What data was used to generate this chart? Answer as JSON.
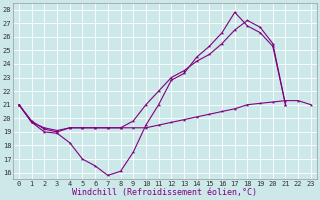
{
  "xlabel": "Windchill (Refroidissement éolien,°C)",
  "ylabel": "",
  "bg_color": "#cce8e8",
  "line_color": "#800080",
  "grid_color": "#ffffff",
  "hours": [
    0,
    1,
    2,
    3,
    4,
    5,
    6,
    7,
    8,
    9,
    10,
    11,
    12,
    13,
    14,
    15,
    16,
    17,
    18,
    19,
    20,
    21,
    22,
    23
  ],
  "temp": [
    21,
    19.8,
    19.2,
    19.0,
    19.3,
    19.3,
    19.3,
    19.3,
    19.3,
    19.3,
    19.3,
    19.5,
    19.7,
    19.9,
    20.1,
    20.3,
    20.5,
    20.7,
    21.0,
    21.1,
    21.2,
    21.3,
    21.3,
    21.0
  ],
  "windchill": [
    21,
    19.7,
    19.0,
    18.9,
    18.2,
    17.0,
    16.5,
    15.8,
    16.1,
    17.5,
    19.5,
    21.0,
    22.8,
    23.3,
    24.5,
    25.3,
    26.3,
    27.8,
    26.8,
    26.3,
    25.3,
    21.0,
    null,
    null
  ],
  "apparent": [
    21,
    19.7,
    19.3,
    19.1,
    19.3,
    19.3,
    19.3,
    19.3,
    19.3,
    19.8,
    21.0,
    22.0,
    23.0,
    23.5,
    24.2,
    24.7,
    25.5,
    26.5,
    27.2,
    26.7,
    25.5,
    21.0,
    null,
    null
  ],
  "ylim": [
    15.5,
    28.5
  ],
  "xlim": [
    -0.5,
    23.5
  ],
  "yticks": [
    16,
    17,
    18,
    19,
    20,
    21,
    22,
    23,
    24,
    25,
    26,
    27,
    28
  ],
  "xticks": [
    0,
    1,
    2,
    3,
    4,
    5,
    6,
    7,
    8,
    9,
    10,
    11,
    12,
    13,
    14,
    15,
    16,
    17,
    18,
    19,
    20,
    21,
    22,
    23
  ],
  "marker": "*",
  "markersize": 2.5,
  "tick_fontsize": 5,
  "xlabel_fontsize": 6,
  "linewidth": 0.8
}
